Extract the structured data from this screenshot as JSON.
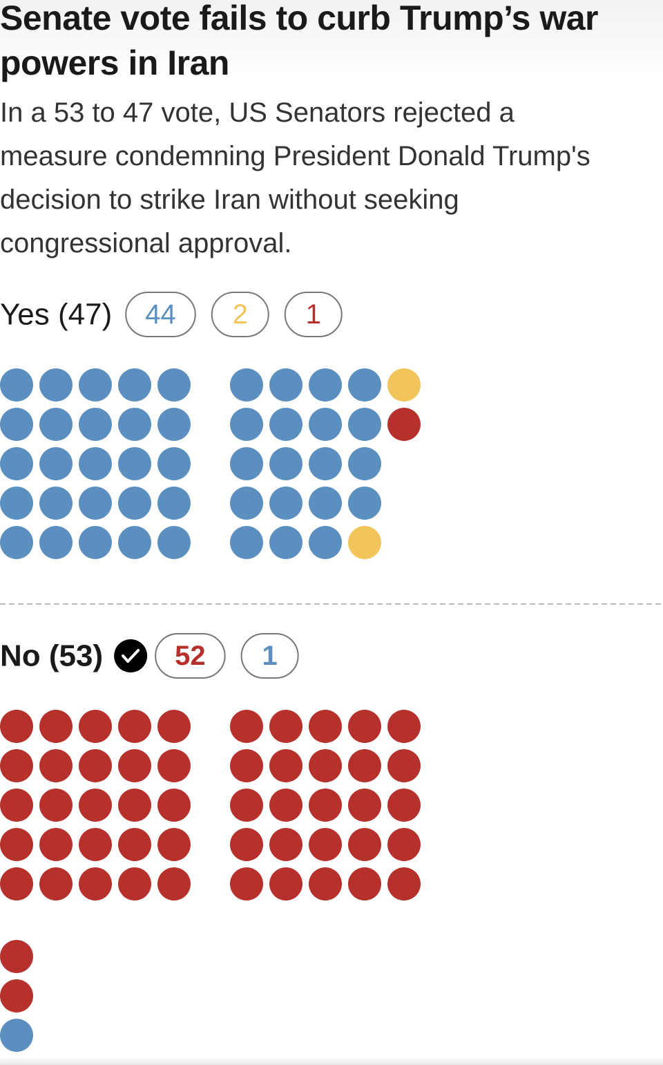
{
  "chart_data": {
    "type": "waffle",
    "title": "Senate vote fails to curb Trump’s war powers in Iran",
    "subtitle": "In a 53 to 47 vote, US Senators rejected a measure condemning President Donald Trump's decision to strike Iran without seeking congressional approval.",
    "groups": [
      {
        "label": "Yes (47)",
        "winner": false,
        "counts": [
          44,
          2,
          1
        ],
        "colors": [
          "#5b8fc0",
          "#f2c55c",
          "#b7312c"
        ]
      },
      {
        "label": "No (53)",
        "winner": true,
        "counts": [
          52,
          1
        ],
        "colors": [
          "#b7312c",
          "#5b8fc0"
        ]
      }
    ]
  }
}
